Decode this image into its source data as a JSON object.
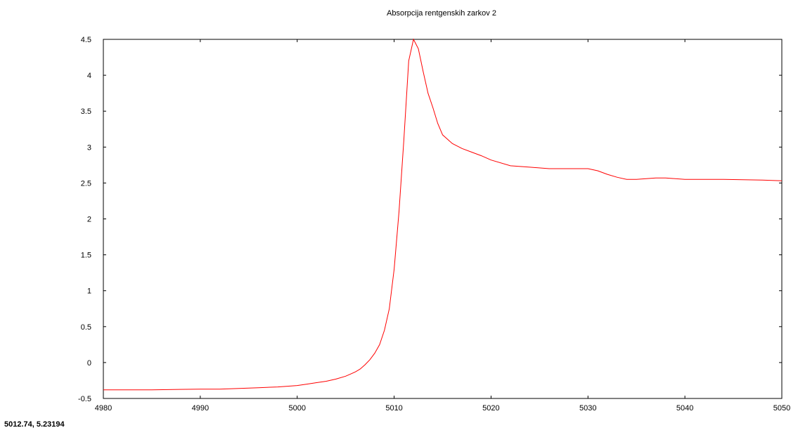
{
  "status_bar": {
    "coordinate_readout": "5012.74,  5.23194"
  },
  "chart_data": {
    "type": "line",
    "title": "Absorpcija rentgenskih zarkov 2",
    "xlabel": "",
    "ylabel": "",
    "xlim": [
      4980,
      5050
    ],
    "ylim": [
      -0.5,
      4.5
    ],
    "x_ticks": [
      "4980",
      "4990",
      "5000",
      "5010",
      "5020",
      "5030",
      "5040",
      "5050"
    ],
    "y_ticks": [
      "-0.5",
      "0",
      "0.5",
      "1",
      "1.5",
      "2",
      "2.5",
      "3",
      "3.5",
      "4",
      "4.5"
    ],
    "grid": false,
    "line_color": "#ff0000",
    "series": [
      {
        "x": [
          4980,
          4985,
          4990,
          4992,
          4994,
          4996,
          4998,
          5000,
          5001,
          5002,
          5003,
          5004,
          5005,
          5005.5,
          5006,
          5006.5,
          5007,
          5007.5,
          5008,
          5008.5,
          5009,
          5009.5,
          5010,
          5010.5,
          5011,
          5011.5,
          5012,
          5012.5,
          5013,
          5013.5,
          5014,
          5014.5,
          5015,
          5016,
          5017,
          5018,
          5019,
          5020,
          5022,
          5024,
          5026,
          5028,
          5030,
          5031,
          5032,
          5033,
          5034,
          5035,
          5036,
          5037,
          5038,
          5040,
          5044,
          5048,
          5050
        ],
        "y": [
          -0.38,
          -0.38,
          -0.37,
          -0.37,
          -0.36,
          -0.35,
          -0.34,
          -0.32,
          -0.3,
          -0.28,
          -0.26,
          -0.23,
          -0.19,
          -0.16,
          -0.13,
          -0.09,
          -0.03,
          0.04,
          0.13,
          0.25,
          0.45,
          0.75,
          1.3,
          2.1,
          3.1,
          4.2,
          4.5,
          4.37,
          4.05,
          3.75,
          3.55,
          3.33,
          3.17,
          3.05,
          2.98,
          2.93,
          2.88,
          2.82,
          2.74,
          2.72,
          2.7,
          2.7,
          2.7,
          2.67,
          2.62,
          2.58,
          2.55,
          2.55,
          2.56,
          2.57,
          2.57,
          2.55,
          2.55,
          2.54,
          2.53
        ]
      }
    ]
  }
}
